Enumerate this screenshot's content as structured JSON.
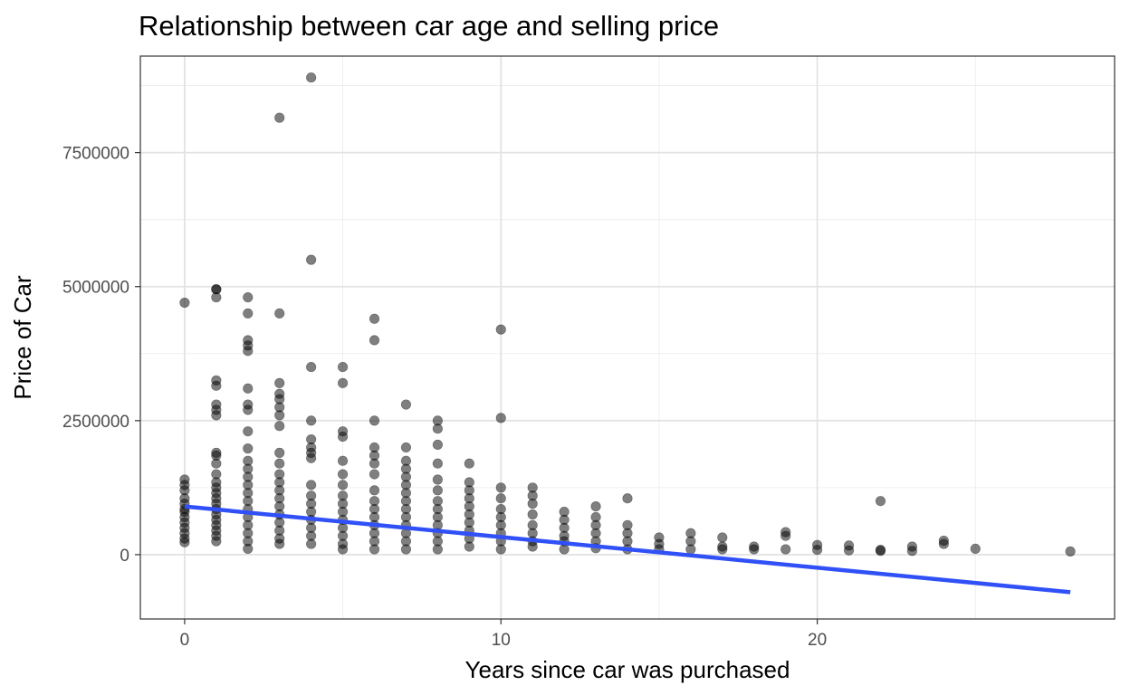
{
  "chart_data": {
    "type": "scatter",
    "title": "Relationship between car age and selling price",
    "xlabel": "Years since car was purchased",
    "ylabel": "Price of Car",
    "xlim": [
      -1.4,
      29.4
    ],
    "ylim": [
      -1200000,
      9300000
    ],
    "x_ticks": [
      0,
      10,
      20
    ],
    "x_tick_labels": [
      "0",
      "10",
      "20"
    ],
    "y_ticks": [
      0,
      2500000,
      5000000,
      7500000
    ],
    "y_tick_labels": [
      "0",
      "2500000",
      "5000000",
      "7500000"
    ],
    "grid": true,
    "legend": "none",
    "point_color": "#000000",
    "point_alpha": 0.5,
    "points": [
      {
        "x": 0,
        "y": 4700000
      },
      {
        "x": 0,
        "y": 1400000
      },
      {
        "x": 0,
        "y": 1300000
      },
      {
        "x": 0,
        "y": 1200000
      },
      {
        "x": 0,
        "y": 1050000
      },
      {
        "x": 0,
        "y": 950000
      },
      {
        "x": 0,
        "y": 850000
      },
      {
        "x": 0,
        "y": 800000
      },
      {
        "x": 0,
        "y": 700000
      },
      {
        "x": 0,
        "y": 600000
      },
      {
        "x": 0,
        "y": 500000
      },
      {
        "x": 0,
        "y": 400000
      },
      {
        "x": 0,
        "y": 300000
      },
      {
        "x": 0,
        "y": 230000
      },
      {
        "x": 1,
        "y": 4950000
      },
      {
        "x": 1,
        "y": 4950000
      },
      {
        "x": 1,
        "y": 4800000
      },
      {
        "x": 1,
        "y": 3250000
      },
      {
        "x": 1,
        "y": 3150000
      },
      {
        "x": 1,
        "y": 2800000
      },
      {
        "x": 1,
        "y": 2700000
      },
      {
        "x": 1,
        "y": 2600000
      },
      {
        "x": 1,
        "y": 1900000
      },
      {
        "x": 1,
        "y": 1850000
      },
      {
        "x": 1,
        "y": 1700000
      },
      {
        "x": 1,
        "y": 1500000
      },
      {
        "x": 1,
        "y": 1350000
      },
      {
        "x": 1,
        "y": 1250000
      },
      {
        "x": 1,
        "y": 1150000
      },
      {
        "x": 1,
        "y": 1050000
      },
      {
        "x": 1,
        "y": 950000
      },
      {
        "x": 1,
        "y": 850000
      },
      {
        "x": 1,
        "y": 750000
      },
      {
        "x": 1,
        "y": 650000
      },
      {
        "x": 1,
        "y": 550000
      },
      {
        "x": 1,
        "y": 450000
      },
      {
        "x": 1,
        "y": 350000
      },
      {
        "x": 1,
        "y": 250000
      },
      {
        "x": 2,
        "y": 4800000
      },
      {
        "x": 2,
        "y": 4500000
      },
      {
        "x": 2,
        "y": 4000000
      },
      {
        "x": 2,
        "y": 3900000
      },
      {
        "x": 2,
        "y": 3800000
      },
      {
        "x": 2,
        "y": 3100000
      },
      {
        "x": 2,
        "y": 2800000
      },
      {
        "x": 2,
        "y": 2700000
      },
      {
        "x": 2,
        "y": 2300000
      },
      {
        "x": 2,
        "y": 1980000
      },
      {
        "x": 2,
        "y": 1750000
      },
      {
        "x": 2,
        "y": 1600000
      },
      {
        "x": 2,
        "y": 1450000
      },
      {
        "x": 2,
        "y": 1300000
      },
      {
        "x": 2,
        "y": 1150000
      },
      {
        "x": 2,
        "y": 1000000
      },
      {
        "x": 2,
        "y": 850000
      },
      {
        "x": 2,
        "y": 700000
      },
      {
        "x": 2,
        "y": 550000
      },
      {
        "x": 2,
        "y": 400000
      },
      {
        "x": 2,
        "y": 250000
      },
      {
        "x": 2,
        "y": 110000
      },
      {
        "x": 3,
        "y": 8150000
      },
      {
        "x": 3,
        "y": 4500000
      },
      {
        "x": 3,
        "y": 3200000
      },
      {
        "x": 3,
        "y": 3000000
      },
      {
        "x": 3,
        "y": 2900000
      },
      {
        "x": 3,
        "y": 2750000
      },
      {
        "x": 3,
        "y": 2600000
      },
      {
        "x": 3,
        "y": 2400000
      },
      {
        "x": 3,
        "y": 1900000
      },
      {
        "x": 3,
        "y": 1700000
      },
      {
        "x": 3,
        "y": 1500000
      },
      {
        "x": 3,
        "y": 1350000
      },
      {
        "x": 3,
        "y": 1200000
      },
      {
        "x": 3,
        "y": 1050000
      },
      {
        "x": 3,
        "y": 900000
      },
      {
        "x": 3,
        "y": 750000
      },
      {
        "x": 3,
        "y": 600000
      },
      {
        "x": 3,
        "y": 450000
      },
      {
        "x": 3,
        "y": 300000
      },
      {
        "x": 3,
        "y": 200000
      },
      {
        "x": 4,
        "y": 8900000
      },
      {
        "x": 4,
        "y": 5500000
      },
      {
        "x": 4,
        "y": 3500000
      },
      {
        "x": 4,
        "y": 2500000
      },
      {
        "x": 4,
        "y": 2150000
      },
      {
        "x": 4,
        "y": 2000000
      },
      {
        "x": 4,
        "y": 1900000
      },
      {
        "x": 4,
        "y": 1800000
      },
      {
        "x": 4,
        "y": 1300000
      },
      {
        "x": 4,
        "y": 1100000
      },
      {
        "x": 4,
        "y": 950000
      },
      {
        "x": 4,
        "y": 800000
      },
      {
        "x": 4,
        "y": 650000
      },
      {
        "x": 4,
        "y": 500000
      },
      {
        "x": 4,
        "y": 350000
      },
      {
        "x": 4,
        "y": 200000
      },
      {
        "x": 5,
        "y": 3500000
      },
      {
        "x": 5,
        "y": 3200000
      },
      {
        "x": 5,
        "y": 2300000
      },
      {
        "x": 5,
        "y": 2200000
      },
      {
        "x": 5,
        "y": 1750000
      },
      {
        "x": 5,
        "y": 1500000
      },
      {
        "x": 5,
        "y": 1300000
      },
      {
        "x": 5,
        "y": 1100000
      },
      {
        "x": 5,
        "y": 950000
      },
      {
        "x": 5,
        "y": 800000
      },
      {
        "x": 5,
        "y": 650000
      },
      {
        "x": 5,
        "y": 500000
      },
      {
        "x": 5,
        "y": 350000
      },
      {
        "x": 5,
        "y": 200000
      },
      {
        "x": 5,
        "y": 100000
      },
      {
        "x": 6,
        "y": 4400000
      },
      {
        "x": 6,
        "y": 4000000
      },
      {
        "x": 6,
        "y": 2500000
      },
      {
        "x": 6,
        "y": 2000000
      },
      {
        "x": 6,
        "y": 1850000
      },
      {
        "x": 6,
        "y": 1700000
      },
      {
        "x": 6,
        "y": 1500000
      },
      {
        "x": 6,
        "y": 1200000
      },
      {
        "x": 6,
        "y": 1000000
      },
      {
        "x": 6,
        "y": 850000
      },
      {
        "x": 6,
        "y": 700000
      },
      {
        "x": 6,
        "y": 550000
      },
      {
        "x": 6,
        "y": 400000
      },
      {
        "x": 6,
        "y": 250000
      },
      {
        "x": 6,
        "y": 100000
      },
      {
        "x": 7,
        "y": 2800000
      },
      {
        "x": 7,
        "y": 2000000
      },
      {
        "x": 7,
        "y": 1750000
      },
      {
        "x": 7,
        "y": 1600000
      },
      {
        "x": 7,
        "y": 1450000
      },
      {
        "x": 7,
        "y": 1300000
      },
      {
        "x": 7,
        "y": 1150000
      },
      {
        "x": 7,
        "y": 1000000
      },
      {
        "x": 7,
        "y": 850000
      },
      {
        "x": 7,
        "y": 700000
      },
      {
        "x": 7,
        "y": 550000
      },
      {
        "x": 7,
        "y": 400000
      },
      {
        "x": 7,
        "y": 250000
      },
      {
        "x": 7,
        "y": 100000
      },
      {
        "x": 8,
        "y": 2500000
      },
      {
        "x": 8,
        "y": 2350000
      },
      {
        "x": 8,
        "y": 2050000
      },
      {
        "x": 8,
        "y": 1700000
      },
      {
        "x": 8,
        "y": 1400000
      },
      {
        "x": 8,
        "y": 1200000
      },
      {
        "x": 8,
        "y": 1000000
      },
      {
        "x": 8,
        "y": 850000
      },
      {
        "x": 8,
        "y": 700000
      },
      {
        "x": 8,
        "y": 550000
      },
      {
        "x": 8,
        "y": 400000
      },
      {
        "x": 8,
        "y": 250000
      },
      {
        "x": 8,
        "y": 100000
      },
      {
        "x": 9,
        "y": 1700000
      },
      {
        "x": 9,
        "y": 1350000
      },
      {
        "x": 9,
        "y": 1200000
      },
      {
        "x": 9,
        "y": 1050000
      },
      {
        "x": 9,
        "y": 900000
      },
      {
        "x": 9,
        "y": 750000
      },
      {
        "x": 9,
        "y": 600000
      },
      {
        "x": 9,
        "y": 450000
      },
      {
        "x": 9,
        "y": 300000
      },
      {
        "x": 9,
        "y": 150000
      },
      {
        "x": 10,
        "y": 4200000
      },
      {
        "x": 10,
        "y": 2550000
      },
      {
        "x": 10,
        "y": 1250000
      },
      {
        "x": 10,
        "y": 1050000
      },
      {
        "x": 10,
        "y": 850000
      },
      {
        "x": 10,
        "y": 700000
      },
      {
        "x": 10,
        "y": 550000
      },
      {
        "x": 10,
        "y": 400000
      },
      {
        "x": 10,
        "y": 250000
      },
      {
        "x": 10,
        "y": 100000
      },
      {
        "x": 11,
        "y": 1250000
      },
      {
        "x": 11,
        "y": 1100000
      },
      {
        "x": 11,
        "y": 950000
      },
      {
        "x": 11,
        "y": 750000
      },
      {
        "x": 11,
        "y": 550000
      },
      {
        "x": 11,
        "y": 400000
      },
      {
        "x": 11,
        "y": 250000
      },
      {
        "x": 11,
        "y": 150000
      },
      {
        "x": 12,
        "y": 800000
      },
      {
        "x": 12,
        "y": 650000
      },
      {
        "x": 12,
        "y": 500000
      },
      {
        "x": 12,
        "y": 350000
      },
      {
        "x": 12,
        "y": 250000
      },
      {
        "x": 12,
        "y": 100000
      },
      {
        "x": 13,
        "y": 900000
      },
      {
        "x": 13,
        "y": 700000
      },
      {
        "x": 13,
        "y": 550000
      },
      {
        "x": 13,
        "y": 400000
      },
      {
        "x": 13,
        "y": 250000
      },
      {
        "x": 13,
        "y": 120000
      },
      {
        "x": 14,
        "y": 1050000
      },
      {
        "x": 14,
        "y": 550000
      },
      {
        "x": 14,
        "y": 400000
      },
      {
        "x": 14,
        "y": 250000
      },
      {
        "x": 14,
        "y": 100000
      },
      {
        "x": 15,
        "y": 320000
      },
      {
        "x": 15,
        "y": 200000
      },
      {
        "x": 15,
        "y": 100000
      },
      {
        "x": 16,
        "y": 400000
      },
      {
        "x": 16,
        "y": 250000
      },
      {
        "x": 16,
        "y": 100000
      },
      {
        "x": 17,
        "y": 320000
      },
      {
        "x": 17,
        "y": 150000
      },
      {
        "x": 17,
        "y": 100000
      },
      {
        "x": 18,
        "y": 150000
      },
      {
        "x": 18,
        "y": 100000
      },
      {
        "x": 19,
        "y": 420000
      },
      {
        "x": 19,
        "y": 350000
      },
      {
        "x": 19,
        "y": 100000
      },
      {
        "x": 20,
        "y": 180000
      },
      {
        "x": 20,
        "y": 90000
      },
      {
        "x": 21,
        "y": 170000
      },
      {
        "x": 21,
        "y": 80000
      },
      {
        "x": 22,
        "y": 1000000
      },
      {
        "x": 22,
        "y": 90000
      },
      {
        "x": 22,
        "y": 70000
      },
      {
        "x": 23,
        "y": 150000
      },
      {
        "x": 23,
        "y": 70000
      },
      {
        "x": 24,
        "y": 260000
      },
      {
        "x": 24,
        "y": 200000
      },
      {
        "x": 25,
        "y": 110000
      },
      {
        "x": 28,
        "y": 60000
      }
    ],
    "fit_line": {
      "color": "#3050F8",
      "x": [
        0,
        28
      ],
      "y": [
        900000,
        -700000
      ]
    }
  }
}
